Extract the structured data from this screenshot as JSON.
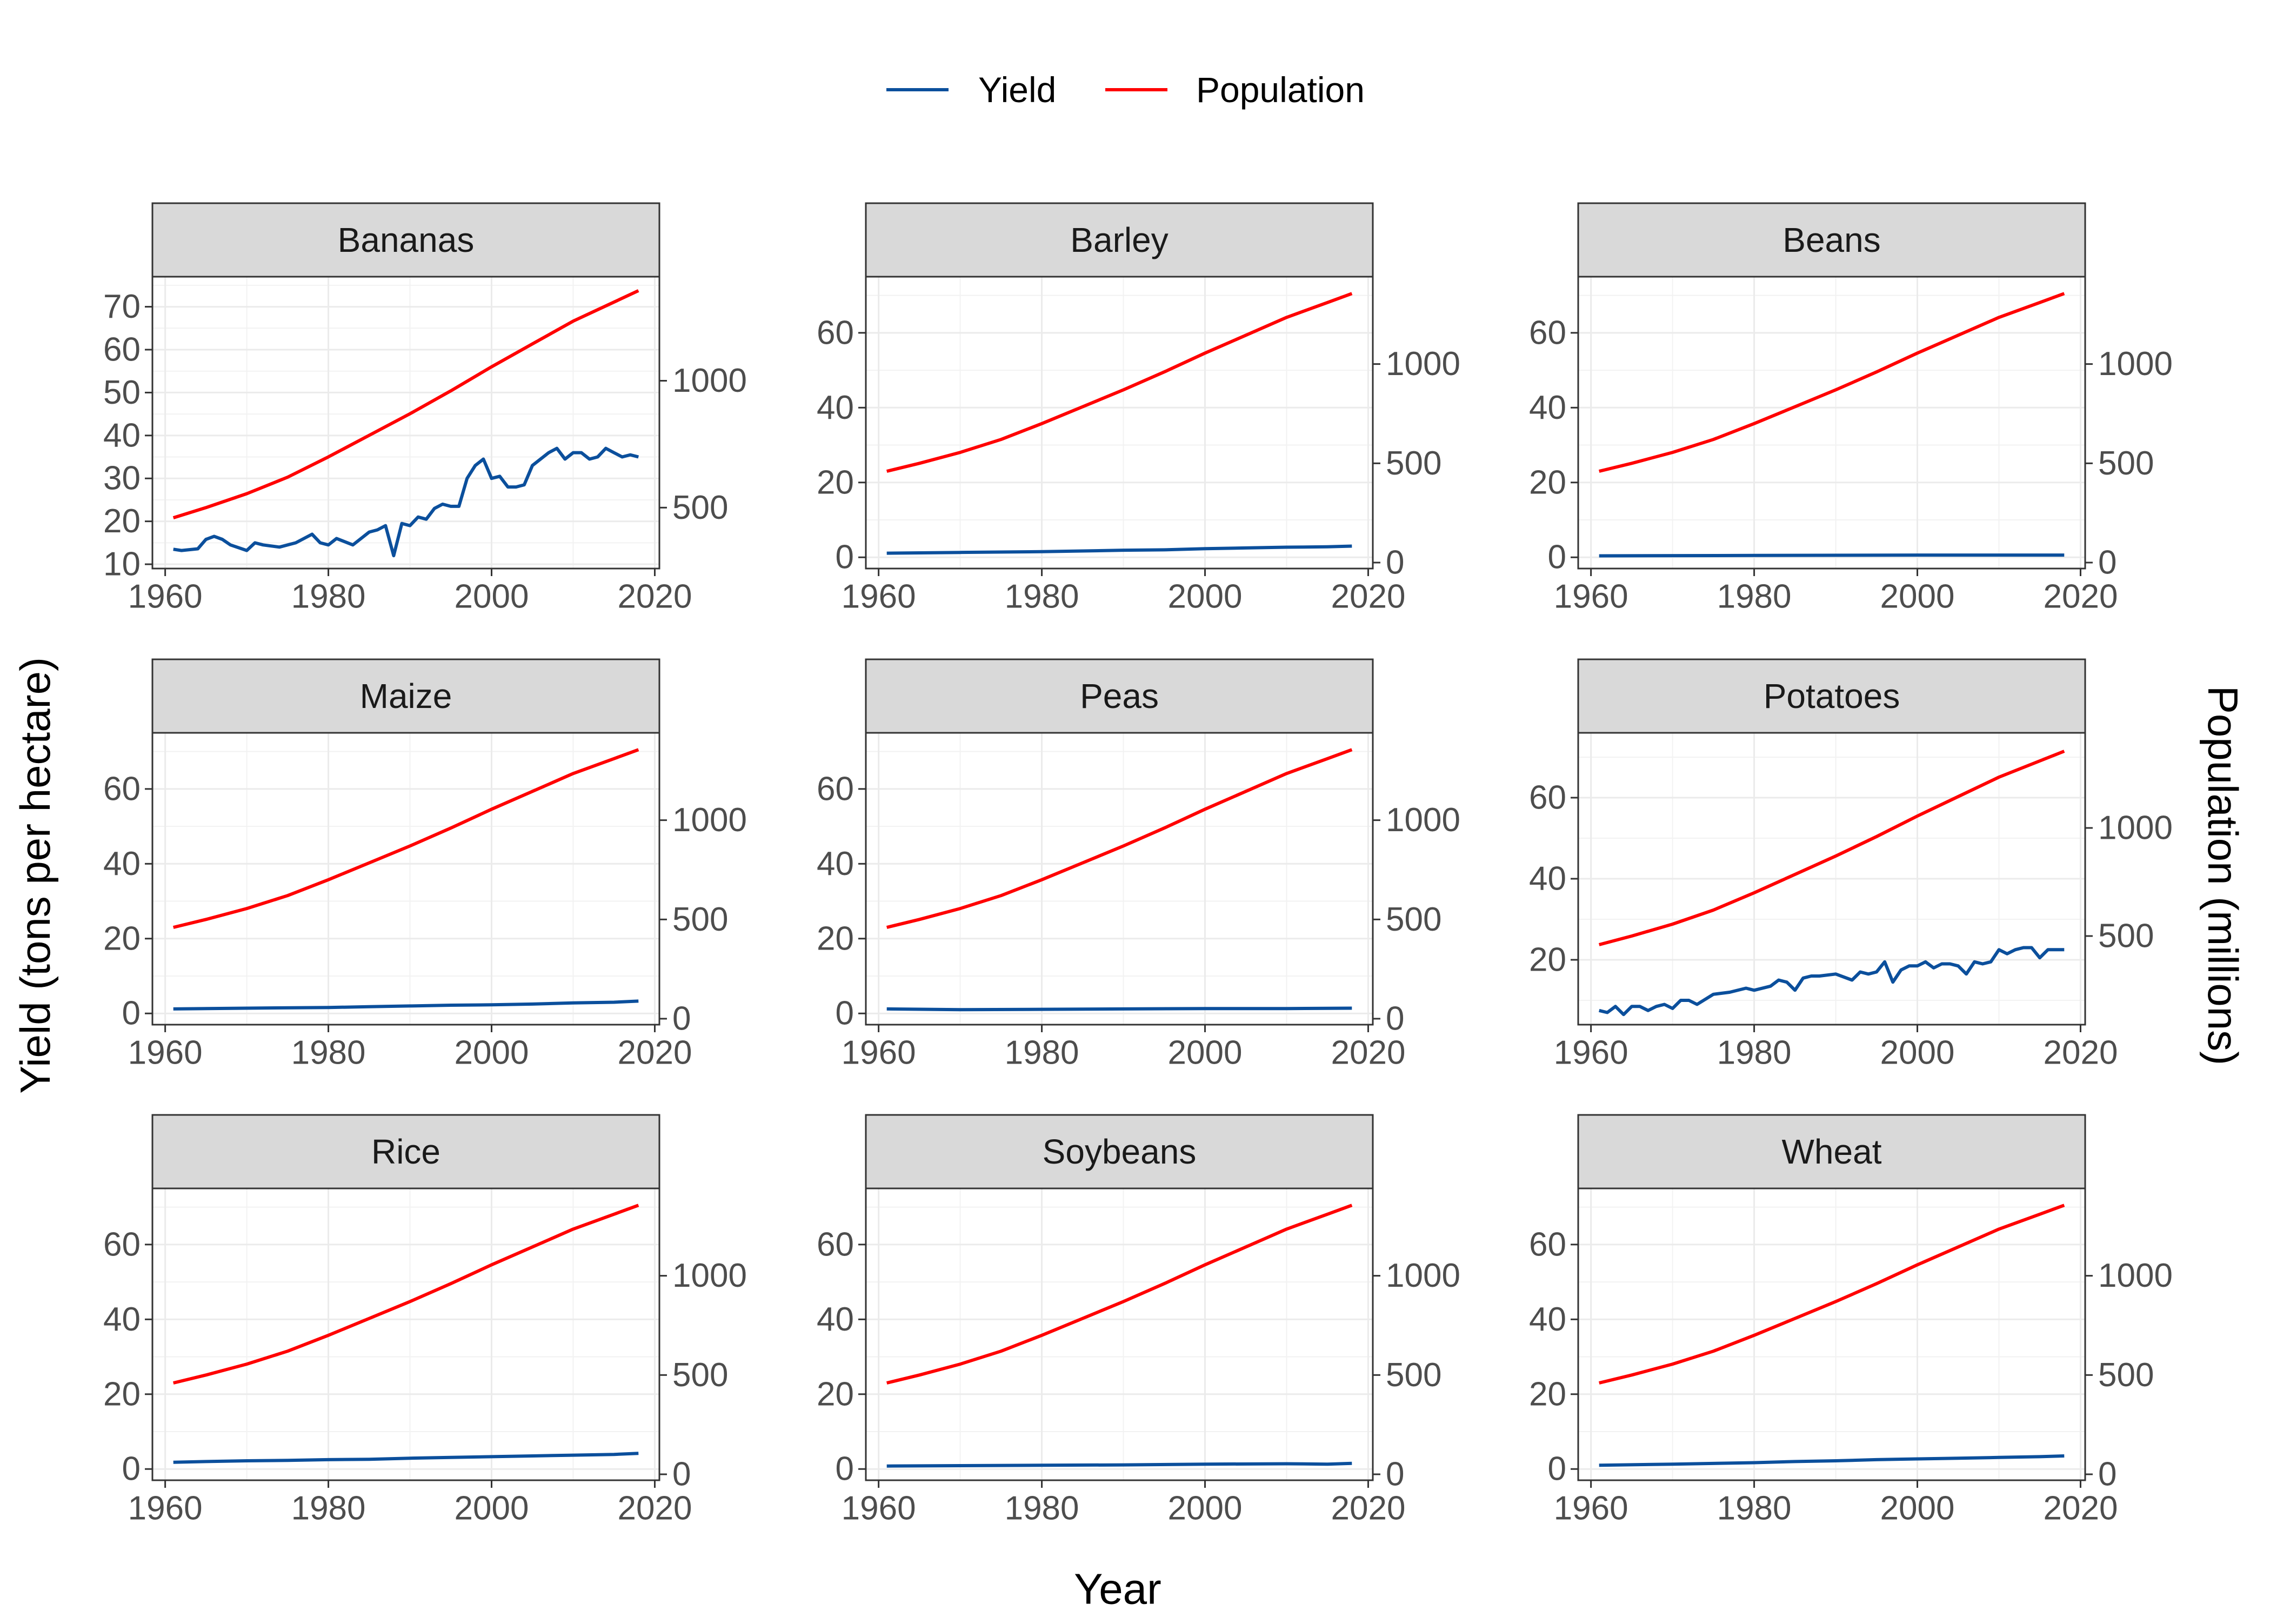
{
  "chart_data": {
    "type": "line",
    "xlabel": "Year",
    "ylabel": "Yield (tons per hectare)",
    "ylabel_secondary": "Population (millions)",
    "legend_position": "top",
    "grid": true,
    "xlim": [
      1961,
      2018
    ],
    "x_ticks": [
      1960,
      1980,
      2000,
      2020
    ],
    "colors": {
      "Yield": "#0b4f9c",
      "Population": "#ff0000"
    },
    "series_names": [
      "Yield",
      "Population"
    ],
    "population": {
      "x": [
        1961,
        1965,
        1970,
        1975,
        1980,
        1985,
        1990,
        1995,
        2000,
        2005,
        2010,
        2015,
        2018
      ],
      "values": [
        460,
        500,
        555,
        620,
        700,
        785,
        870,
        960,
        1055,
        1145,
        1235,
        1310,
        1355
      ]
    },
    "panels": [
      {
        "title": "Bananas",
        "ylim": [
          9,
          77
        ],
        "y_ticks": [
          10,
          20,
          30,
          40,
          50,
          60,
          70
        ],
        "y2lim": [
          260,
          1410
        ],
        "y2_ticks": [
          500,
          1000
        ],
        "yield_x": [
          1961,
          1962,
          1964,
          1965,
          1966,
          1967,
          1968,
          1970,
          1971,
          1972,
          1974,
          1976,
          1978,
          1979,
          1980,
          1981,
          1983,
          1985,
          1986,
          1987,
          1988,
          1989,
          1990,
          1991,
          1992,
          1993,
          1994,
          1995,
          1996,
          1997,
          1998,
          1999,
          2000,
          2001,
          2002,
          2003,
          2004,
          2005,
          2006,
          2007,
          2008,
          2009,
          2010,
          2011,
          2012,
          2013,
          2014,
          2015,
          2016,
          2017,
          2018
        ],
        "yield_values": [
          13.5,
          13.2,
          13.6,
          15.8,
          16.5,
          15.8,
          14.5,
          13.2,
          15,
          14.5,
          14,
          15,
          17,
          15,
          14.5,
          16,
          14.5,
          17.5,
          18,
          19,
          12,
          19.5,
          19,
          21,
          20.5,
          23,
          24,
          23.5,
          23.5,
          30,
          33,
          34.5,
          30,
          30.5,
          28,
          28,
          28.5,
          33,
          34.5,
          36,
          37,
          34.5,
          36,
          36,
          34.5,
          35,
          37,
          36,
          35,
          35.5,
          35
        ]
      },
      {
        "title": "Barley",
        "ylim": [
          -3,
          75
        ],
        "y_ticks": [
          0,
          20,
          40,
          60
        ],
        "y2lim": [
          -30,
          1440
        ],
        "y2_ticks": [
          0,
          500,
          1000
        ],
        "yield_x": [
          1961,
          1970,
          1980,
          1985,
          1990,
          1995,
          2000,
          2005,
          2010,
          2015,
          2018
        ],
        "yield_values": [
          1.1,
          1.3,
          1.5,
          1.7,
          1.9,
          2.0,
          2.3,
          2.5,
          2.7,
          2.8,
          3.0
        ]
      },
      {
        "title": "Beans",
        "ylim": [
          -3,
          75
        ],
        "y_ticks": [
          0,
          20,
          40,
          60
        ],
        "y2lim": [
          -30,
          1440
        ],
        "y2_ticks": [
          0,
          500,
          1000
        ],
        "yield_x": [
          1961,
          1980,
          2000,
          2018
        ],
        "yield_values": [
          0.4,
          0.5,
          0.6,
          0.6
        ]
      },
      {
        "title": "Maize",
        "ylim": [
          -3,
          75
        ],
        "y_ticks": [
          0,
          20,
          40,
          60
        ],
        "y2lim": [
          -30,
          1440
        ],
        "y2_ticks": [
          0,
          500,
          1000
        ],
        "yield_x": [
          1961,
          1970,
          1980,
          1985,
          1990,
          1995,
          2000,
          2005,
          2010,
          2015,
          2018
        ],
        "yield_values": [
          1.2,
          1.4,
          1.6,
          1.8,
          2.0,
          2.2,
          2.3,
          2.5,
          2.8,
          3.0,
          3.3
        ]
      },
      {
        "title": "Peas",
        "ylim": [
          -3,
          75
        ],
        "y_ticks": [
          0,
          20,
          40,
          60
        ],
        "y2lim": [
          -30,
          1440
        ],
        "y2_ticks": [
          0,
          500,
          1000
        ],
        "yield_x": [
          1961,
          1970,
          1980,
          1990,
          2000,
          2010,
          2018
        ],
        "yield_values": [
          1.2,
          1.0,
          1.1,
          1.2,
          1.3,
          1.3,
          1.4
        ]
      },
      {
        "title": "Potatoes",
        "ylim": [
          4,
          76
        ],
        "y_ticks": [
          20,
          40,
          60
        ],
        "y2lim": [
          90,
          1440
        ],
        "y2_ticks": [
          500,
          1000
        ],
        "yield_x": [
          1961,
          1962,
          1963,
          1964,
          1965,
          1966,
          1967,
          1968,
          1969,
          1970,
          1971,
          1972,
          1973,
          1975,
          1977,
          1979,
          1980,
          1982,
          1983,
          1984,
          1985,
          1986,
          1987,
          1988,
          1990,
          1992,
          1993,
          1994,
          1995,
          1996,
          1997,
          1998,
          1999,
          2000,
          2001,
          2002,
          2003,
          2004,
          2005,
          2006,
          2007,
          2008,
          2009,
          2010,
          2011,
          2012,
          2013,
          2014,
          2015,
          2016,
          2017,
          2018
        ],
        "yield_values": [
          7.5,
          7.0,
          8.5,
          6.5,
          8.5,
          8.5,
          7.5,
          8.5,
          9.0,
          8.0,
          10.0,
          10.0,
          9.0,
          11.5,
          12.0,
          13.0,
          12.5,
          13.5,
          15.0,
          14.5,
          12.5,
          15.5,
          16.0,
          16.0,
          16.5,
          15.0,
          17.0,
          16.5,
          17.0,
          19.5,
          14.5,
          17.5,
          18.5,
          18.5,
          19.5,
          18.0,
          19.0,
          19.0,
          18.5,
          16.5,
          19.5,
          19.0,
          19.5,
          22.5,
          21.5,
          22.5,
          23.0,
          23.0,
          20.5,
          22.5,
          22.5,
          22.5
        ]
      },
      {
        "title": "Rice",
        "ylim": [
          -3,
          75
        ],
        "y_ticks": [
          0,
          20,
          40,
          60
        ],
        "y2lim": [
          -30,
          1440
        ],
        "y2_ticks": [
          0,
          500,
          1000
        ],
        "yield_x": [
          1961,
          1965,
          1970,
          1975,
          1980,
          1985,
          1990,
          1995,
          2000,
          2005,
          2010,
          2015,
          2018
        ],
        "yield_values": [
          1.8,
          2.0,
          2.2,
          2.3,
          2.5,
          2.6,
          2.9,
          3.1,
          3.3,
          3.5,
          3.7,
          3.9,
          4.2
        ]
      },
      {
        "title": "Soybeans",
        "ylim": [
          -3,
          75
        ],
        "y_ticks": [
          0,
          20,
          40,
          60
        ],
        "y2lim": [
          -30,
          1440
        ],
        "y2_ticks": [
          0,
          500,
          1000
        ],
        "yield_x": [
          1961,
          1970,
          1980,
          1990,
          2000,
          2010,
          2015,
          2018
        ],
        "yield_values": [
          0.8,
          0.9,
          1.0,
          1.1,
          1.3,
          1.4,
          1.3,
          1.5
        ]
      },
      {
        "title": "Wheat",
        "ylim": [
          -3,
          75
        ],
        "y_ticks": [
          0,
          20,
          40,
          60
        ],
        "y2lim": [
          -30,
          1440
        ],
        "y2_ticks": [
          0,
          500,
          1000
        ],
        "yield_x": [
          1961,
          1970,
          1980,
          1985,
          1990,
          1995,
          2000,
          2005,
          2010,
          2015,
          2018
        ],
        "yield_values": [
          1.0,
          1.3,
          1.7,
          2.0,
          2.2,
          2.5,
          2.7,
          2.9,
          3.1,
          3.3,
          3.5
        ]
      }
    ]
  }
}
